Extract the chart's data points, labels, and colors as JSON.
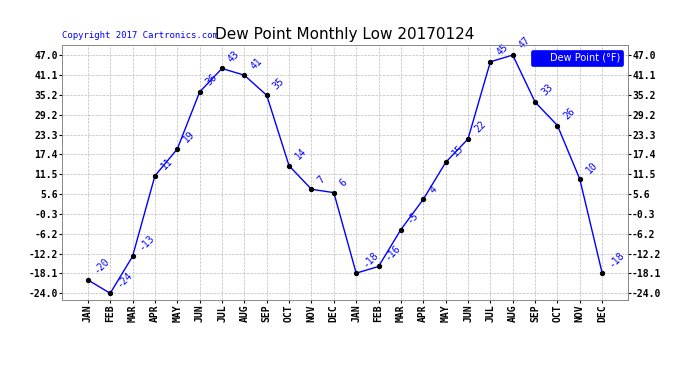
{
  "title": "Dew Point Monthly Low 20170124",
  "copyright": "Copyright 2017 Cartronics.com",
  "legend_label": "Dew Point (°F)",
  "x_labels": [
    "JAN",
    "FEB",
    "MAR",
    "APR",
    "MAY",
    "JUN",
    "JUL",
    "AUG",
    "SEP",
    "OCT",
    "NOV",
    "DEC",
    "JAN",
    "FEB",
    "MAR",
    "APR",
    "MAY",
    "JUN",
    "JUL",
    "AUG",
    "SEP",
    "OCT",
    "NOV",
    "DEC"
  ],
  "y_values": [
    -20,
    -24,
    -13,
    11,
    19,
    36,
    43,
    41,
    35,
    14,
    7,
    6,
    -18,
    -16,
    -5,
    4,
    15,
    22,
    45,
    47,
    33,
    26,
    10,
    -18
  ],
  "y_labels": [
    "-24.0",
    "-18.1",
    "-12.2",
    "-6.2",
    "-0.3",
    "5.6",
    "11.5",
    "17.4",
    "23.3",
    "29.2",
    "35.2",
    "41.1",
    "47.0"
  ],
  "y_ticks": [
    -24.0,
    -18.1,
    -12.2,
    -6.2,
    -0.3,
    5.6,
    11.5,
    17.4,
    23.3,
    29.2,
    35.2,
    41.1,
    47.0
  ],
  "ylim": [
    -26,
    50
  ],
  "line_color": "blue",
  "marker_color": "black",
  "bg_color": "white",
  "grid_color": "#bbbbbb",
  "title_fontsize": 11,
  "tick_fontsize": 7,
  "annot_fontsize": 7,
  "copyright_fontsize": 6.5
}
